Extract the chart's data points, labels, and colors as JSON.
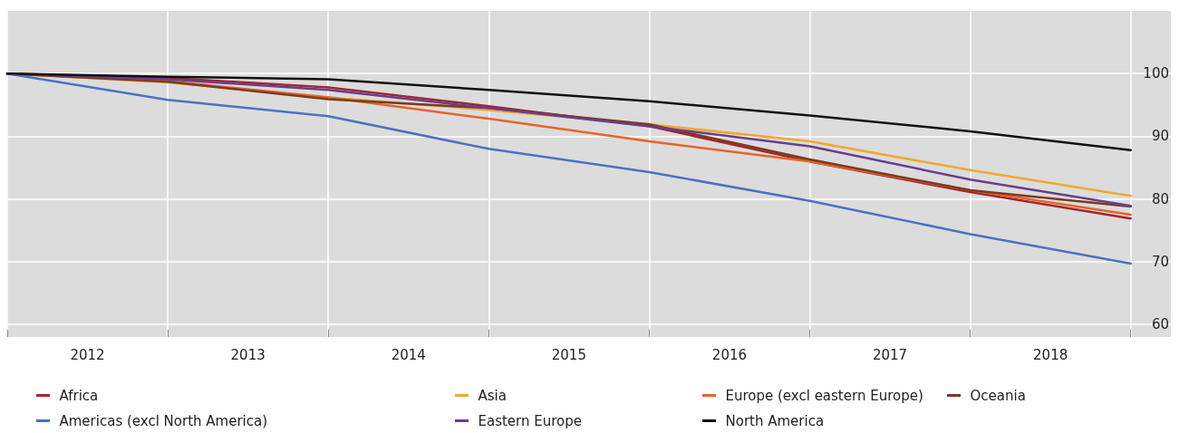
{
  "chart_data": {
    "type": "line",
    "x": [
      2012,
      2013,
      2014,
      2015,
      2016,
      2017,
      2018,
      2019
    ],
    "xlim": [
      2012,
      2019.25
    ],
    "xticks": [
      {
        "value": 2012,
        "label": null
      },
      {
        "value": 2012.5,
        "label": "2012"
      },
      {
        "value": 2013,
        "label": null
      },
      {
        "value": 2013.5,
        "label": "2013"
      },
      {
        "value": 2014,
        "label": null
      },
      {
        "value": 2014.5,
        "label": "2014"
      },
      {
        "value": 2015,
        "label": null
      },
      {
        "value": 2015.5,
        "label": "2015"
      },
      {
        "value": 2016,
        "label": null
      },
      {
        "value": 2016.5,
        "label": "2016"
      },
      {
        "value": 2017,
        "label": null
      },
      {
        "value": 2017.5,
        "label": "2017"
      },
      {
        "value": 2018,
        "label": null
      },
      {
        "value": 2018.5,
        "label": "2018"
      },
      {
        "value": 2019,
        "label": null
      }
    ],
    "ylim": [
      58,
      110
    ],
    "yticks": [
      60,
      70,
      80,
      90,
      100
    ],
    "grid": true,
    "legend": "bottom",
    "marker": "none",
    "line_style": "solid",
    "series": [
      {
        "name": "Africa",
        "color": "#a3262e",
        "values": [
          100,
          99.3,
          97.8,
          94.8,
          91.6,
          86.0,
          81.1,
          76.9
        ]
      },
      {
        "name": "Asia",
        "color": "#f0a830",
        "values": [
          100,
          98.6,
          96.2,
          94.2,
          91.9,
          89.2,
          84.6,
          80.5
        ]
      },
      {
        "name": "Europe (excl eastern Europe)",
        "color": "#e8632b",
        "values": [
          100,
          98.8,
          96.2,
          92.8,
          89.2,
          86.0,
          81.4,
          77.5
        ]
      },
      {
        "name": "Oceania",
        "color": "#7a3b1f",
        "values": [
          100,
          98.7,
          95.9,
          94.5,
          91.9,
          86.3,
          81.4,
          78.8
        ]
      },
      {
        "name": "Americas (excl North America)",
        "color": "#4a72c4",
        "values": [
          100,
          95.8,
          93.2,
          88.0,
          84.3,
          79.7,
          74.4,
          69.7
        ]
      },
      {
        "name": "Eastern Europe",
        "color": "#6a3d8f",
        "values": [
          100,
          99.1,
          97.4,
          94.5,
          91.6,
          88.4,
          83.1,
          78.9
        ]
      },
      {
        "name": "North America",
        "color": "#111111",
        "values": [
          100,
          99.5,
          99.1,
          97.4,
          95.6,
          93.3,
          90.8,
          87.8
        ]
      }
    ]
  }
}
